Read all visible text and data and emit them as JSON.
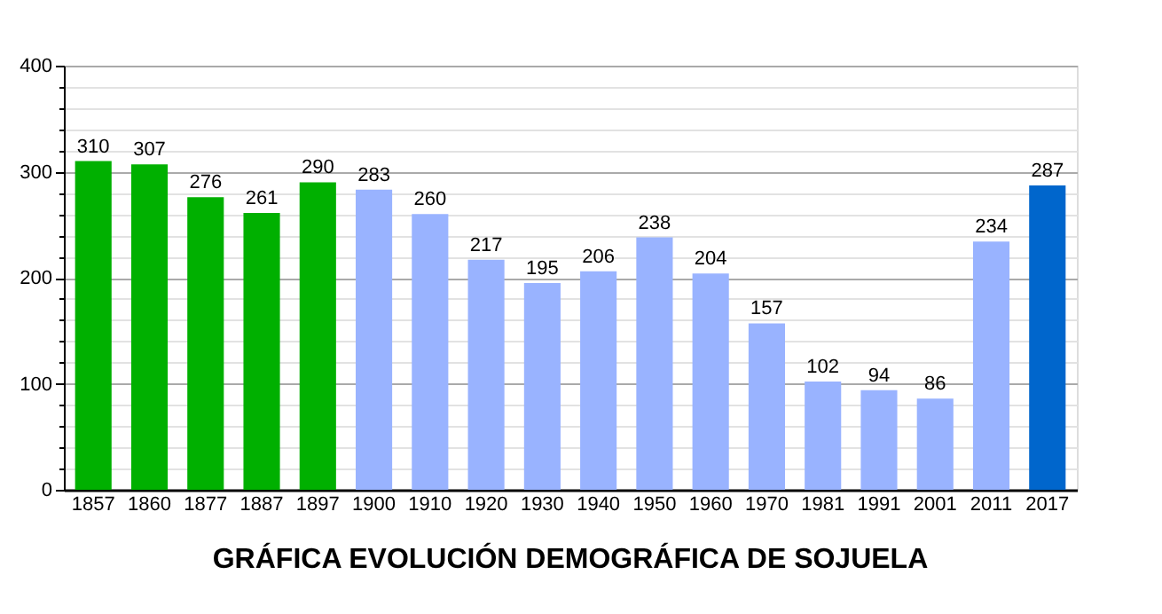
{
  "chart_data": {
    "type": "bar",
    "title": "GRÁFICA EVOLUCIÓN DEMOGRÁFICA DE SOJUELA",
    "categories": [
      "1857",
      "1860",
      "1877",
      "1887",
      "1897",
      "1900",
      "1910",
      "1920",
      "1930",
      "1940",
      "1950",
      "1960",
      "1970",
      "1981",
      "1991",
      "2001",
      "2011",
      "2017"
    ],
    "values": [
      310,
      307,
      276,
      261,
      290,
      283,
      260,
      217,
      195,
      206,
      238,
      204,
      157,
      102,
      94,
      86,
      234,
      287
    ],
    "colors": [
      "#00b000",
      "#00b000",
      "#00b000",
      "#00b000",
      "#00b000",
      "#99b3ff",
      "#99b3ff",
      "#99b3ff",
      "#99b3ff",
      "#99b3ff",
      "#99b3ff",
      "#99b3ff",
      "#99b3ff",
      "#99b3ff",
      "#99b3ff",
      "#99b3ff",
      "#99b3ff",
      "#0066cc"
    ],
    "ylim": [
      0,
      400
    ],
    "yticks": [
      0,
      {
        "value": 20,
        "label": null
      },
      {
        "value": 40,
        "label": null
      },
      {
        "value": 60,
        "label": null
      },
      {
        "value": 80,
        "label": null
      },
      100,
      {
        "value": 120,
        "label": null
      },
      {
        "value": 140,
        "label": null
      },
      {
        "value": 160,
        "label": null
      },
      {
        "value": 180,
        "label": null
      },
      200,
      {
        "value": 220,
        "label": null
      },
      {
        "value": 240,
        "label": null
      },
      {
        "value": 260,
        "label": null
      },
      {
        "value": 280,
        "label": null
      },
      300,
      {
        "value": 320,
        "label": null
      },
      {
        "value": 340,
        "label": null
      },
      {
        "value": 360,
        "label": null
      },
      {
        "value": 380,
        "label": null
      },
      400
    ],
    "grid": "y",
    "data_labels": true
  }
}
